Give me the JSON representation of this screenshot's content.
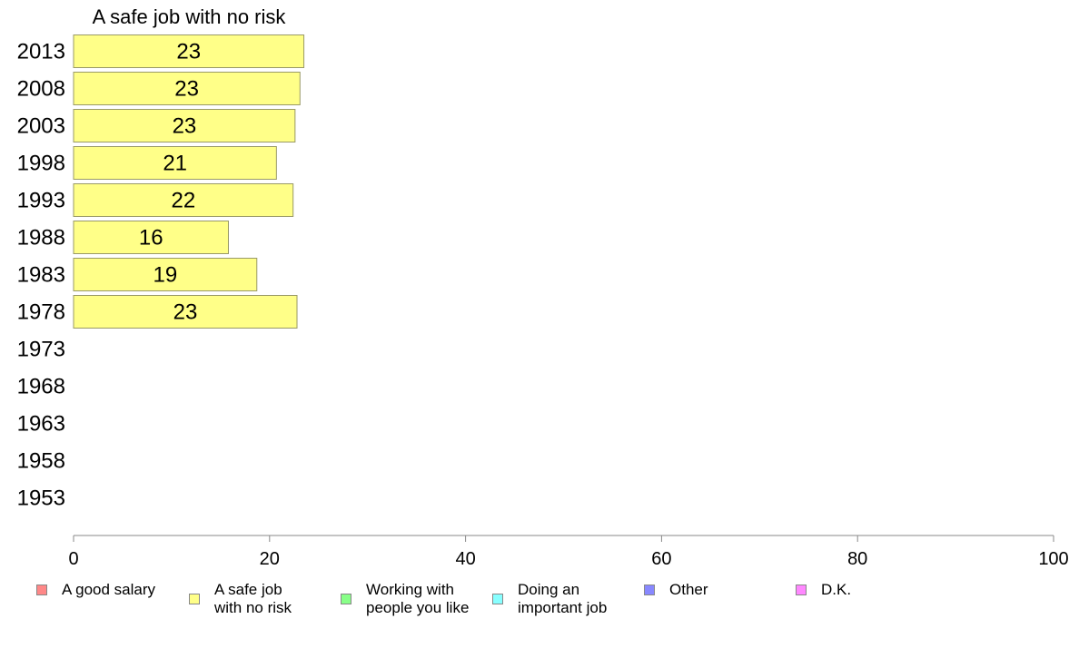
{
  "chart_data": {
    "type": "bar",
    "orientation": "horizontal",
    "title": "A safe job with no risk",
    "categories": [
      "2013",
      "2008",
      "2003",
      "1998",
      "1993",
      "1988",
      "1983",
      "1978",
      "1973",
      "1968",
      "1963",
      "1958",
      "1953"
    ],
    "values": [
      23.5,
      23.1,
      22.6,
      20.7,
      22.4,
      15.8,
      18.7,
      22.8,
      null,
      null,
      null,
      null,
      null
    ],
    "data_labels": [
      "23",
      "23",
      "23",
      "21",
      "22",
      "16",
      "19",
      "23",
      "",
      "",
      "",
      "",
      ""
    ],
    "xlim": [
      0,
      100
    ],
    "xticks": [
      "0",
      "20",
      "40",
      "60",
      "80",
      "100"
    ],
    "bar_color": "#ffff88",
    "bar_border": "#999966",
    "grid": false,
    "legend_position": "bottom"
  },
  "legend": [
    {
      "label": "A good salary",
      "color": "#ff8888"
    },
    {
      "label": "A safe job\nwith no risk",
      "color": "#ffff88"
    },
    {
      "label": "Working with\npeople you like",
      "color": "#88ff88"
    },
    {
      "label": "Doing an\nimportant job",
      "color": "#88ffff"
    },
    {
      "label": "Other",
      "color": "#8888ff"
    },
    {
      "label": "D.K.",
      "color": "#ff88ff"
    }
  ]
}
